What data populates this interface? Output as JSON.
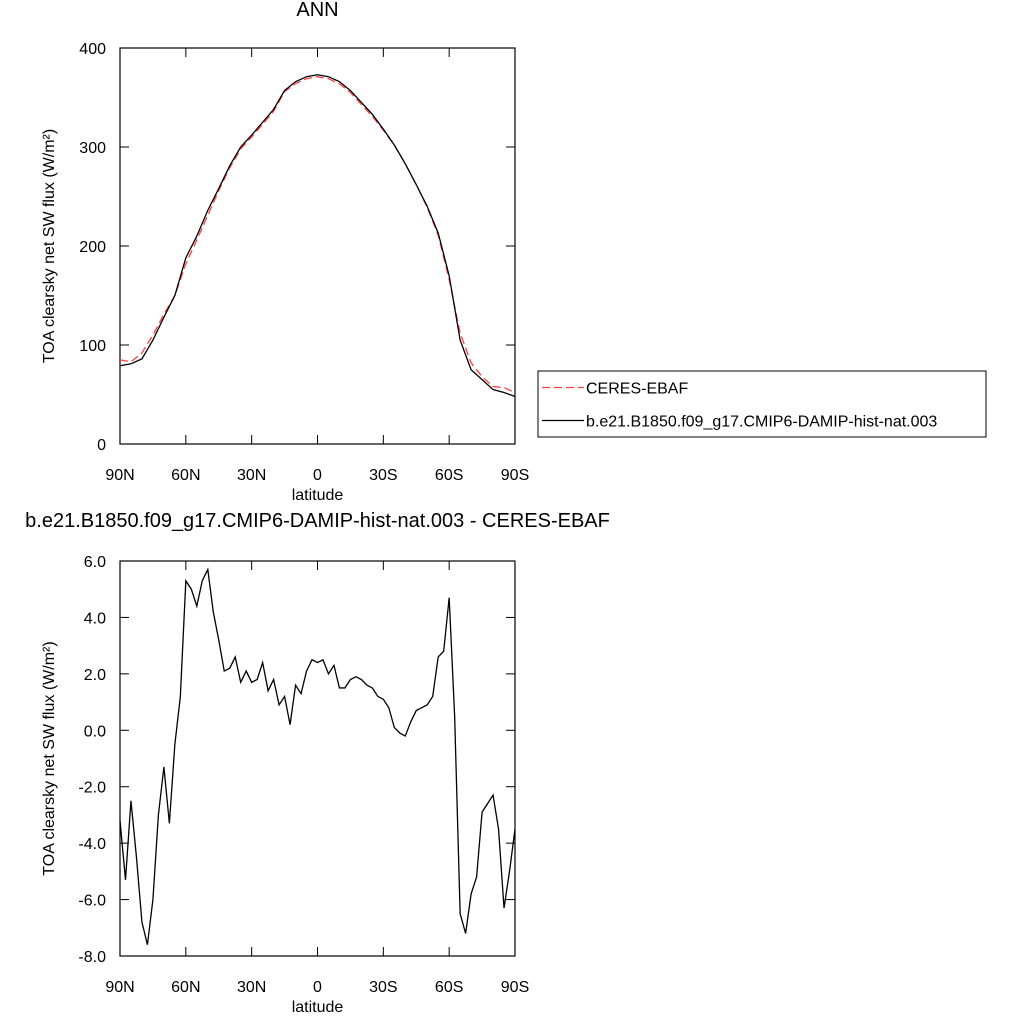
{
  "chart_data": [
    {
      "type": "line",
      "title": "ANN",
      "xlabel": "latitude",
      "ylabel": "TOA clearsky net SW flux (W/m²)",
      "x": [
        90,
        85,
        80,
        75,
        70,
        65,
        60,
        55,
        50,
        45,
        40,
        35,
        30,
        25,
        20,
        15,
        10,
        5,
        0,
        -5,
        -10,
        -15,
        -20,
        -25,
        -30,
        -35,
        -40,
        -45,
        -50,
        -55,
        -60,
        -65,
        -70,
        -75,
        -80,
        -85,
        -90
      ],
      "xlim": [
        90,
        -90
      ],
      "xticks": [
        {
          "value": 90,
          "label": "90N"
        },
        {
          "value": 60,
          "label": "60N"
        },
        {
          "value": 30,
          "label": "30N"
        },
        0,
        {
          "value": -30,
          "label": "30S"
        },
        {
          "value": -60,
          "label": "60S"
        },
        {
          "value": -90,
          "label": "90S"
        }
      ],
      "ylim": [
        0,
        400
      ],
      "yticks": [
        0,
        100,
        200,
        300,
        400
      ],
      "legend": "right",
      "series": [
        {
          "name": "CERES-EBAF",
          "color": "#ff4040",
          "dashed": true,
          "values": [
            85,
            83,
            92,
            110,
            131,
            150,
            182,
            206,
            231,
            256,
            279,
            298,
            310,
            323,
            336,
            356,
            364,
            369,
            371,
            369,
            364,
            355,
            343,
            331,
            317,
            302,
            283,
            262,
            239,
            211,
            166,
            112,
            82,
            68,
            58,
            57,
            52
          ]
        },
        {
          "name": "b.e21.B1850.f09_g17.CMIP6-DAMIP-hist-nat.003",
          "color": "#000000",
          "dashed": false,
          "values": [
            79,
            81,
            86,
            105,
            128,
            150,
            188,
            210,
            236,
            258,
            281,
            300,
            312,
            325,
            338,
            357,
            366,
            371,
            373,
            371,
            366,
            357,
            345,
            333,
            318,
            302,
            283,
            262,
            240,
            213,
            170,
            105,
            75,
            65,
            55,
            52,
            48
          ]
        }
      ]
    },
    {
      "type": "line",
      "title": "b.e21.B1850.f09_g17.CMIP6-DAMIP-hist-nat.003 - CERES-EBAF",
      "xlabel": "latitude",
      "ylabel": "TOA clearsky net SW flux (W/m²)",
      "x": [
        90,
        87.5,
        85,
        82.5,
        80,
        77.5,
        75,
        72.5,
        70,
        67.5,
        65,
        62.5,
        60,
        57.5,
        55,
        52.5,
        50,
        47.5,
        45,
        42.5,
        40,
        37.5,
        35,
        32.5,
        30,
        27.5,
        25,
        22.5,
        20,
        17.5,
        15,
        12.5,
        10,
        7.5,
        5,
        2.5,
        0,
        -2.5,
        -5,
        -7.5,
        -10,
        -12.5,
        -15,
        -17.5,
        -20,
        -22.5,
        -25,
        -27.5,
        -30,
        -32.5,
        -35,
        -37.5,
        -40,
        -42.5,
        -45,
        -47.5,
        -50,
        -52.5,
        -55,
        -57.5,
        -60,
        -62.5,
        -65,
        -67.5,
        -70,
        -72.5,
        -75,
        -77.5,
        -80,
        -82.5,
        -85,
        -87.5,
        -90
      ],
      "xlim": [
        90,
        -90
      ],
      "xticks": [
        {
          "value": 90,
          "label": "90N"
        },
        {
          "value": 60,
          "label": "60N"
        },
        {
          "value": 30,
          "label": "30N"
        },
        0,
        {
          "value": -30,
          "label": "30S"
        },
        {
          "value": -60,
          "label": "60S"
        },
        {
          "value": -90,
          "label": "90S"
        }
      ],
      "ylim": [
        -8,
        6
      ],
      "yticks": [
        {
          "value": -8,
          "label": "-8.0"
        },
        {
          "value": -6,
          "label": "-6.0"
        },
        {
          "value": -4,
          "label": "-4.0"
        },
        {
          "value": -2,
          "label": "-2.0"
        },
        {
          "value": 0,
          "label": "0.0"
        },
        {
          "value": 2,
          "label": "2.0"
        },
        {
          "value": 4,
          "label": "4.0"
        },
        {
          "value": 6,
          "label": "6.0"
        }
      ],
      "color": "#000000",
      "values": [
        -3.2,
        -5.3,
        -2.5,
        -4.5,
        -6.8,
        -7.6,
        -6.0,
        -3.0,
        -1.3,
        -3.3,
        -0.5,
        1.2,
        5.3,
        5.0,
        4.4,
        5.3,
        5.7,
        4.2,
        3.2,
        2.1,
        2.2,
        2.6,
        1.7,
        2.1,
        1.7,
        1.8,
        2.4,
        1.4,
        1.8,
        0.9,
        1.2,
        0.2,
        1.6,
        1.3,
        2.1,
        2.5,
        2.4,
        2.5,
        2.0,
        2.3,
        1.5,
        1.5,
        1.8,
        1.9,
        1.8,
        1.6,
        1.5,
        1.2,
        1.1,
        0.8,
        0.1,
        -0.1,
        -0.2,
        0.3,
        0.7,
        0.8,
        0.9,
        1.2,
        2.6,
        2.8,
        4.7,
        0.5,
        -6.5,
        -7.2,
        -5.8,
        -5.2,
        -2.9,
        -2.6,
        -2.3,
        -3.5,
        -6.3,
        -5.0,
        -3.5
      ]
    }
  ]
}
